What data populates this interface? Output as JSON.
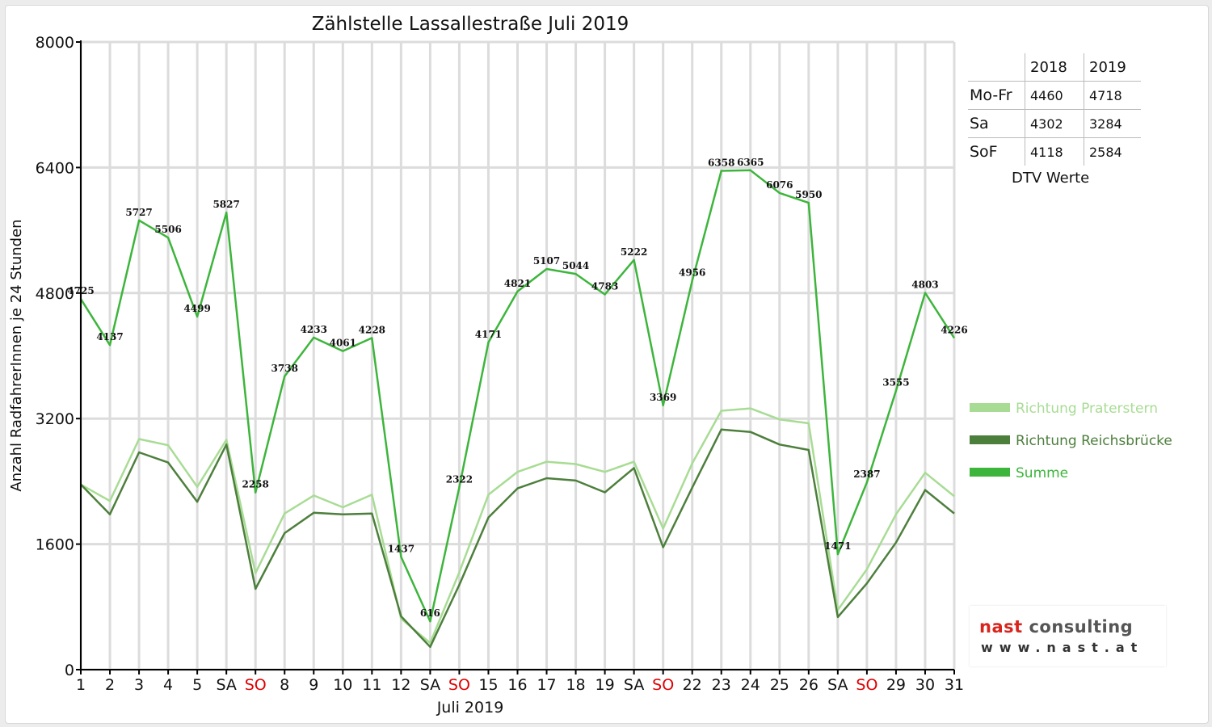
{
  "chart_data": {
    "type": "line",
    "title": "Zählstelle Lassallestraße Juli 2019",
    "xlabel": "Juli 2019",
    "ylabel": "Anzahl RadfahrerInnen je 24 Stunden",
    "ylim": [
      0,
      8000
    ],
    "yticks": [
      "0",
      "1600",
      "3200",
      "4800",
      "6400",
      "8000"
    ],
    "categories": [
      "1",
      "2",
      "3",
      "4",
      "5",
      "SA",
      "SO",
      "8",
      "9",
      "10",
      "11",
      "12",
      "SA",
      "SO",
      "15",
      "16",
      "17",
      "18",
      "19",
      "SA",
      "SO",
      "22",
      "23",
      "24",
      "25",
      "26",
      "SA",
      "SO",
      "29",
      "30",
      "31"
    ],
    "weekend_categories": [
      "SO"
    ],
    "grid": true,
    "legend_position": "right",
    "series": [
      {
        "name": "Richtung Praterstern",
        "color": "#a8dc94",
        "values": [
          2360,
          2150,
          2940,
          2860,
          2330,
          2930,
          1230,
          1990,
          2220,
          2070,
          2230,
          650,
          340,
          1240,
          2230,
          2520,
          2650,
          2620,
          2520,
          2650,
          1800,
          2630,
          3300,
          3330,
          3190,
          3140,
          760,
          1280,
          1980,
          2510,
          2210
        ]
      },
      {
        "name": "Richtung Reichsbrücke",
        "color": "#4d7f3c",
        "values": [
          2360,
          1980,
          2770,
          2640,
          2140,
          2870,
          1030,
          1740,
          2000,
          1980,
          1990,
          680,
          290,
          1080,
          1940,
          2310,
          2440,
          2410,
          2260,
          2570,
          1560,
          2320,
          3060,
          3030,
          2870,
          2800,
          670,
          1100,
          1620,
          2290,
          1990
        ]
      },
      {
        "name": "Summe",
        "color": "#3db53c",
        "values": [
          4725,
          4137,
          5727,
          5506,
          4499,
          5827,
          2258,
          3738,
          4233,
          4061,
          4228,
          1437,
          616,
          2322,
          4171,
          4821,
          5107,
          5044,
          4783,
          5222,
          3369,
          4956,
          6358,
          6365,
          6076,
          5950,
          1471,
          2387,
          3555,
          4803,
          4226
        ]
      }
    ],
    "data_labels": [
      "4725",
      "4137",
      "5727",
      "5506",
      "4499",
      "5827",
      "2258",
      "3738",
      "4233",
      "4061",
      "4228",
      "1437",
      "616",
      "2322",
      "4171",
      "4821",
      "5107",
      "5044",
      "4783",
      "5222",
      "3369",
      "4956",
      "6358",
      "6365",
      "6076",
      "5950",
      "1471",
      "2387",
      "3555",
      "4803",
      "4226"
    ]
  },
  "dtv": {
    "headers": [
      "2018",
      "2019"
    ],
    "rows": [
      {
        "label": "Mo-Fr",
        "v2018": "4460",
        "v2019": "4718"
      },
      {
        "label": "Sa",
        "v2018": "4302",
        "v2019": "3284"
      },
      {
        "label": "SoF",
        "v2018": "4118",
        "v2019": "2584"
      }
    ],
    "caption": "DTV Werte"
  },
  "logo": {
    "name_part1": "nast",
    "name_part2": " consulting",
    "url": "www.nast.at"
  }
}
